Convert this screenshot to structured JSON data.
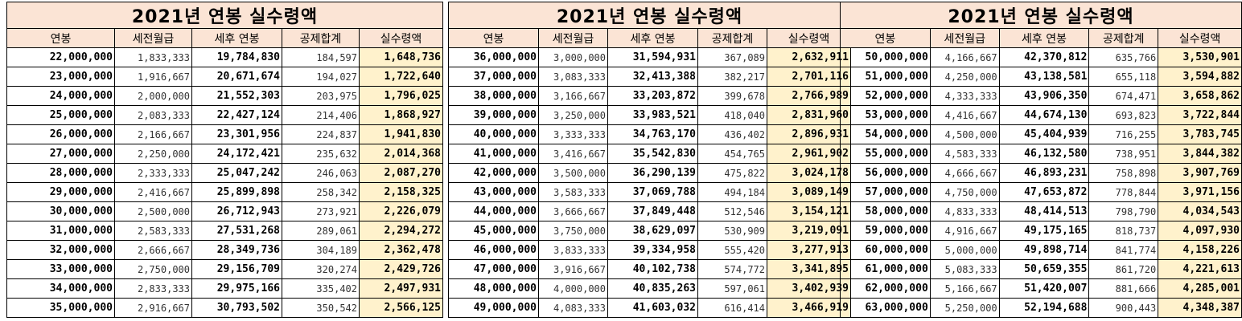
{
  "tables": [
    {
      "title": "2021년 연봉 실수령액",
      "headers": [
        "연봉",
        "세전월급",
        "세후 연봉",
        "공제합계",
        "실수령액"
      ],
      "rows": [
        [
          "22,000,000",
          "1,833,333",
          "19,784,830",
          "184,597",
          "1,648,736"
        ],
        [
          "23,000,000",
          "1,916,667",
          "20,671,674",
          "194,027",
          "1,722,640"
        ],
        [
          "24,000,000",
          "2,000,000",
          "21,552,303",
          "203,975",
          "1,796,025"
        ],
        [
          "25,000,000",
          "2,083,333",
          "22,427,124",
          "214,406",
          "1,868,927"
        ],
        [
          "26,000,000",
          "2,166,667",
          "23,301,956",
          "224,837",
          "1,941,830"
        ],
        [
          "27,000,000",
          "2,250,000",
          "24,172,421",
          "235,632",
          "2,014,368"
        ],
        [
          "28,000,000",
          "2,333,333",
          "25,047,242",
          "246,063",
          "2,087,270"
        ],
        [
          "29,000,000",
          "2,416,667",
          "25,899,898",
          "258,342",
          "2,158,325"
        ],
        [
          "30,000,000",
          "2,500,000",
          "26,712,943",
          "273,921",
          "2,226,079"
        ],
        [
          "31,000,000",
          "2,583,333",
          "27,531,268",
          "289,061",
          "2,294,272"
        ],
        [
          "32,000,000",
          "2,666,667",
          "28,349,736",
          "304,189",
          "2,362,478"
        ],
        [
          "33,000,000",
          "2,750,000",
          "29,156,709",
          "320,274",
          "2,429,726"
        ],
        [
          "34,000,000",
          "2,833,333",
          "29,975,166",
          "335,402",
          "2,497,931"
        ],
        [
          "35,000,000",
          "2,916,667",
          "30,793,502",
          "350,542",
          "2,566,125"
        ]
      ]
    },
    {
      "title": "2021년 연봉 실수령액",
      "headers": [
        "연봉",
        "세전월급",
        "세후 연봉",
        "공제합계",
        "실수령액"
      ],
      "rows": [
        [
          "36,000,000",
          "3,000,000",
          "31,594,931",
          "367,089",
          "2,632,911"
        ],
        [
          "37,000,000",
          "3,083,333",
          "32,413,388",
          "382,217",
          "2,701,116"
        ],
        [
          "38,000,000",
          "3,166,667",
          "33,203,872",
          "399,678",
          "2,766,989"
        ],
        [
          "39,000,000",
          "3,250,000",
          "33,983,521",
          "418,040",
          "2,831,960"
        ],
        [
          "40,000,000",
          "3,333,333",
          "34,763,170",
          "436,402",
          "2,896,931"
        ],
        [
          "41,000,000",
          "3,416,667",
          "35,542,830",
          "454,765",
          "2,961,902"
        ],
        [
          "42,000,000",
          "3,500,000",
          "36,290,139",
          "475,822",
          "3,024,178"
        ],
        [
          "43,000,000",
          "3,583,333",
          "37,069,788",
          "494,184",
          "3,089,149"
        ],
        [
          "44,000,000",
          "3,666,667",
          "37,849,448",
          "512,546",
          "3,154,121"
        ],
        [
          "45,000,000",
          "3,750,000",
          "38,629,097",
          "530,909",
          "3,219,091"
        ],
        [
          "46,000,000",
          "3,833,333",
          "39,334,958",
          "555,420",
          "3,277,913"
        ],
        [
          "47,000,000",
          "3,916,667",
          "40,102,738",
          "574,772",
          "3,341,895"
        ],
        [
          "48,000,000",
          "4,000,000",
          "40,835,263",
          "597,061",
          "3,402,939"
        ],
        [
          "49,000,000",
          "4,083,333",
          "41,603,032",
          "616,414",
          "3,466,919"
        ]
      ]
    },
    {
      "title": "2021년 연봉 실수령액",
      "headers": [
        "연봉",
        "세전월급",
        "세후 연봉",
        "공제합계",
        "실수령액"
      ],
      "rows": [
        [
          "50,000,000",
          "4,166,667",
          "42,370,812",
          "635,766",
          "3,530,901"
        ],
        [
          "51,000,000",
          "4,250,000",
          "43,138,581",
          "655,118",
          "3,594,882"
        ],
        [
          "52,000,000",
          "4,333,333",
          "43,906,350",
          "674,471",
          "3,658,862"
        ],
        [
          "53,000,000",
          "4,416,667",
          "44,674,130",
          "693,823",
          "3,722,844"
        ],
        [
          "54,000,000",
          "4,500,000",
          "45,404,939",
          "716,255",
          "3,783,745"
        ],
        [
          "55,000,000",
          "4,583,333",
          "46,132,580",
          "738,951",
          "3,844,382"
        ],
        [
          "56,000,000",
          "4,666,667",
          "46,893,231",
          "758,898",
          "3,907,769"
        ],
        [
          "57,000,000",
          "4,750,000",
          "47,653,872",
          "778,844",
          "3,971,156"
        ],
        [
          "58,000,000",
          "4,833,333",
          "48,414,513",
          "798,790",
          "4,034,543"
        ],
        [
          "59,000,000",
          "4,916,667",
          "49,175,165",
          "818,737",
          "4,097,930"
        ],
        [
          "60,000,000",
          "5,000,000",
          "49,898,714",
          "841,774",
          "4,158,226"
        ],
        [
          "61,000,000",
          "5,083,333",
          "50,659,355",
          "861,720",
          "4,221,613"
        ],
        [
          "62,000,000",
          "5,166,667",
          "51,420,007",
          "881,666",
          "4,285,001"
        ],
        [
          "63,000,000",
          "5,250,000",
          "52,194,688",
          "900,443",
          "4,348,387"
        ]
      ]
    }
  ],
  "colors": {
    "header_fill": "#fbe4d5",
    "net_fill": "#fff2cc",
    "border": "#000000"
  }
}
